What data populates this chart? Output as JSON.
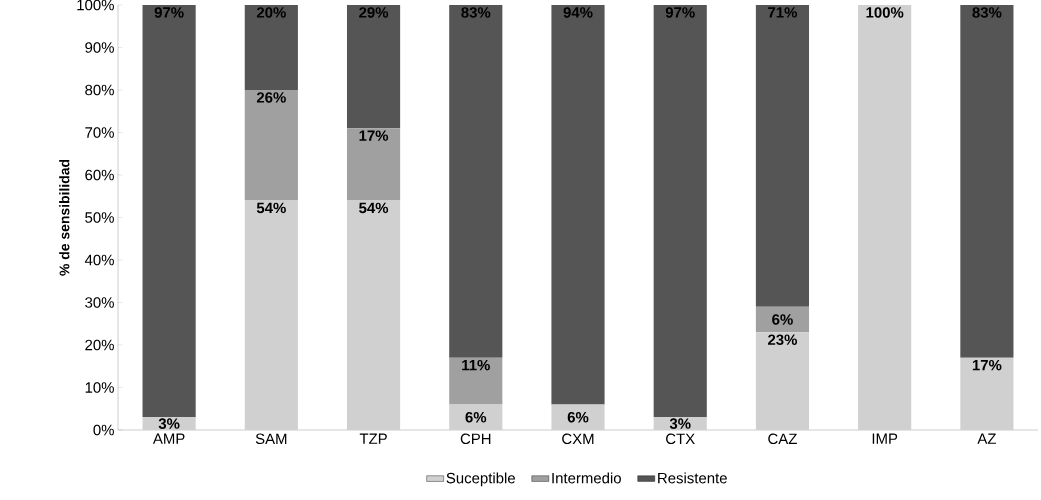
{
  "chart_data": {
    "type": "bar",
    "stacked": true,
    "ylabel": "% de sensibilidad",
    "categories": [
      "AMP",
      "SAM",
      "TZP",
      "CPH",
      "CXM",
      "CTX",
      "CAZ",
      "IMP",
      "AZ"
    ],
    "series": [
      {
        "name": "Suceptible",
        "color": "#d0d0d0",
        "values": [
          3,
          54,
          54,
          6,
          6,
          3,
          23,
          100,
          17
        ],
        "value_labels": [
          "3%",
          "54%",
          "54%",
          "6%",
          "6%",
          "3%",
          "23%",
          "100%",
          "17%"
        ]
      },
      {
        "name": "Intermedio",
        "color": "#a0a0a0",
        "values": [
          0,
          26,
          17,
          11,
          0,
          0,
          6,
          0,
          0
        ],
        "value_labels": [
          null,
          "26%",
          "17%",
          "11%",
          null,
          null,
          "6%",
          null,
          null
        ]
      },
      {
        "name": "Resistente",
        "color": "#555555",
        "values": [
          97,
          20,
          29,
          83,
          94,
          97,
          71,
          0,
          83
        ],
        "value_labels": [
          "97%",
          "20%",
          "29%",
          "83%",
          "94%",
          "97%",
          "71%",
          null,
          "83%"
        ]
      }
    ],
    "ylim": [
      0,
      100
    ],
    "yticks": [
      {
        "value": 0,
        "label": "0%"
      },
      {
        "value": 10,
        "label": "10%"
      },
      {
        "value": 20,
        "label": "20%"
      },
      {
        "value": 30,
        "label": "30%"
      },
      {
        "value": 40,
        "label": "40%"
      },
      {
        "value": 50,
        "label": "50%"
      },
      {
        "value": 60,
        "label": "60%"
      },
      {
        "value": 70,
        "label": "70%"
      },
      {
        "value": 80,
        "label": "80%"
      },
      {
        "value": 90,
        "label": "90%"
      },
      {
        "value": 100,
        "label": "100%"
      }
    ],
    "grid": false,
    "legend": "bottom"
  }
}
